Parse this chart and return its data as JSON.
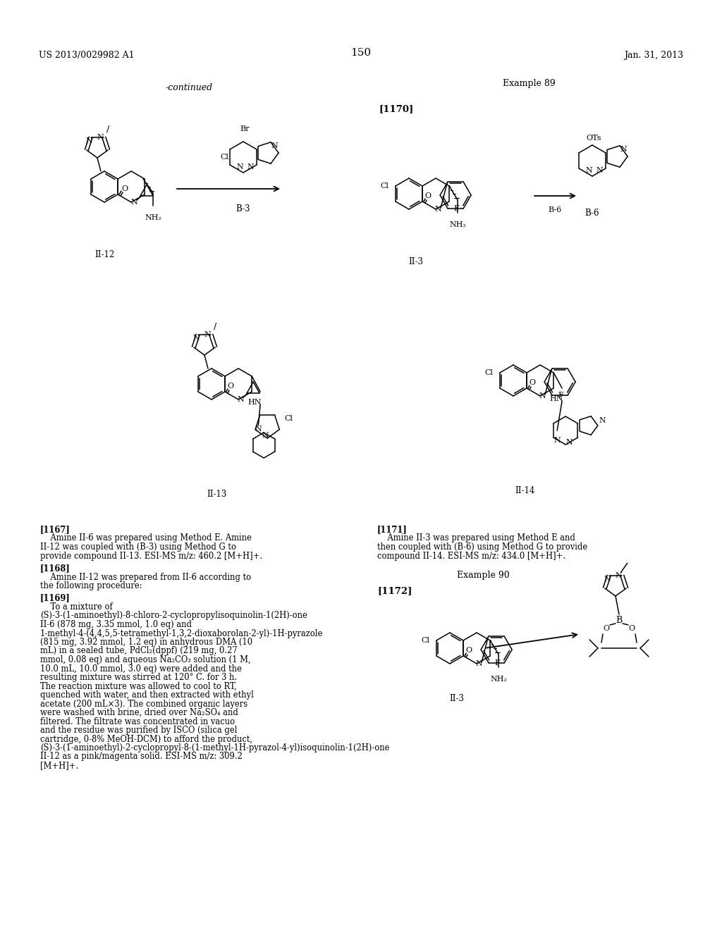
{
  "page_number": "150",
  "patent_number": "US 2013/0029982 A1",
  "patent_date": "Jan. 31, 2013",
  "background_color": "#ffffff",
  "text_color": "#000000",
  "continued_label": "-continued",
  "example89_label": "Example 89",
  "example90_label": "Example 90",
  "ref1170": "[1170]",
  "ref1167": "[1167]",
  "ref1168": "[1168]",
  "ref1169": "[1169]",
  "ref1171": "[1171]",
  "ref1172": "[1172]",
  "label_II12": "II-12",
  "label_II3": "II-3",
  "label_II13": "II-13",
  "label_II14": "II-14",
  "label_B3": "B-3",
  "label_B6": "B-6",
  "p1167": "Amine II-6 was prepared using Method E. Amine II-12 was coupled with (B-3) using Method G to provide compound II-13. ESI-MS m/z: 460.2 [M+H]+.",
  "p1168": "Amine II-12 was prepared from II-6 according to the following procedure:",
  "p1169": "To a mixture of (S)-3-(1-aminoethyl)-8-chloro-2-cyclopropylisoquinolin-1(2H)-one II-6 (878 mg, 3.35 mmol, 1.0 eq) and 1-methyl-4-(4,4,5,5-tetramethyl-1,3,2-dioxaborolan-2-yl)-1H-pyrazole (815 mg, 3.92 mmol, 1.2 eq) in anhydrous DMA (10 mL) in a sealed tube, PdCl2(dppf) (219 mg, 0.27 mmol, 0.08 eq) and aqueous Na2CO3 solution (1 M, 10.0 mL, 10.0 mmol, 3.0 eq) were added and the resulting mixture was stirred at 120 C. for 3 h. The reaction mixture was allowed to cool to RT, quenched with water, and then extracted with ethyl acetate (200 mLx3). The combined organic layers were washed with brine, dried over Na2SO4 and filtered. The filtrate was concentrated in vacuo and the residue was purified by ISCO (silica gel cartridge, 0-8% MeOH-DCM) to afford the product, (S)-3-(1-aminoethyl)-2-cyclopropyl-8-(1-methyl-1H-pyrazol-4-yl)isoquinolin-1(2H)-one II-12 as a pink/magenta solid. ESI-MS m/z: 309.2 [M+H]+.",
  "p1171": "Amine II-3 was prepared using Method E and then coupled with (B-6) using Method G to provide compound II-14. ESI-MS m/z: 434.0 [M+H]+."
}
